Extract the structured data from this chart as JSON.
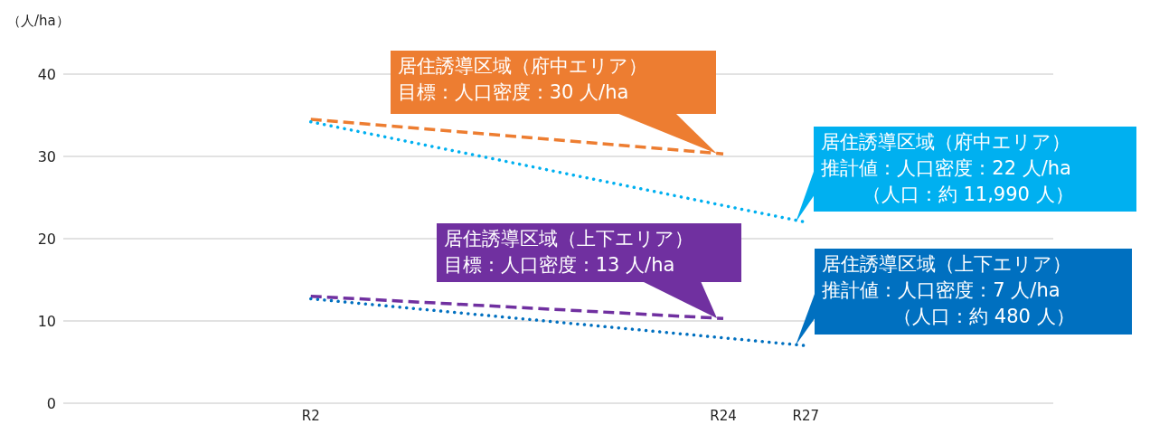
{
  "chart_data": {
    "type": "line",
    "ylabel": "（人/ha）",
    "categories": [
      null,
      null,
      null,
      null,
      null,
      null,
      "R2",
      null,
      null,
      null,
      null,
      null,
      null,
      null,
      null,
      null,
      "R24",
      null,
      "R27",
      null,
      null,
      null,
      null,
      null,
      null
    ],
    "ylim": [
      0,
      40
    ],
    "yticks": [
      0,
      10,
      20,
      30,
      40
    ],
    "grid": "y",
    "marker": "none",
    "series": [
      {
        "color": "#ed7d31",
        "line_style": "dashed",
        "values": [
          null,
          null,
          null,
          null,
          null,
          null,
          34.5,
          null,
          null,
          null,
          null,
          null,
          null,
          null,
          null,
          null,
          30.3,
          null,
          null,
          null,
          null,
          null,
          null,
          null,
          null
        ]
      },
      {
        "color": "#00b0f0",
        "line_style": "dotted",
        "values": [
          null,
          null,
          null,
          null,
          null,
          null,
          34.2,
          null,
          null,
          null,
          null,
          null,
          null,
          null,
          null,
          null,
          null,
          null,
          22.0,
          null,
          null,
          null,
          null,
          null,
          null
        ]
      },
      {
        "color": "#7030a0",
        "line_style": "dashed",
        "values": [
          null,
          null,
          null,
          null,
          null,
          null,
          13.0,
          null,
          null,
          null,
          null,
          null,
          null,
          null,
          null,
          null,
          10.3,
          null,
          null,
          null,
          null,
          null,
          null,
          null,
          null
        ]
      },
      {
        "color": "#0070c0",
        "line_style": "dotted",
        "values": [
          null,
          null,
          null,
          null,
          null,
          null,
          12.7,
          null,
          null,
          null,
          null,
          null,
          null,
          null,
          null,
          null,
          null,
          null,
          7.0,
          null,
          null,
          null,
          null,
          null,
          null
        ]
      }
    ],
    "annotations": [
      {
        "text": "居住誘導区域（府中エリア）目標：人口密度：30 人/ha",
        "x": "R24",
        "y": 30.3
      },
      {
        "text": "居住誘導区域（府中エリア）推計値：人口密度：22 人/ha（人口：約 11,990 人）",
        "x": "R27",
        "y": 22.0
      },
      {
        "text": "居住誘導区域（上下エリア）目標：人口密度：13 人/ha",
        "x": "R24",
        "y": 10.3
      },
      {
        "text": "居住誘導区域（上下エリア）推計値：人口密度：7 人/ha（人口：約 480 人）",
        "x": "R27",
        "y": 7.0
      }
    ]
  }
}
